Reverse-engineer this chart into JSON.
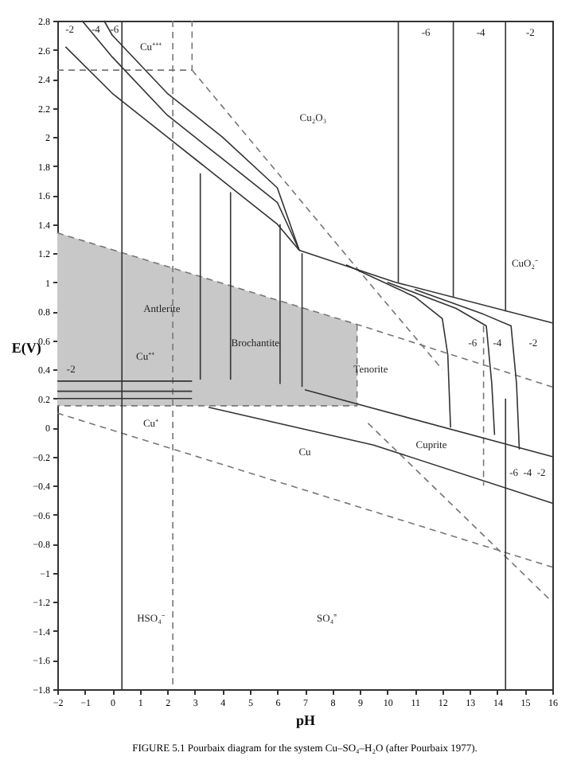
{
  "chart_data": {
    "type": "line",
    "xlabel": "pH",
    "ylabel": "E(V)",
    "xlim": [
      -2,
      16
    ],
    "ylim": [
      -1.8,
      2.8
    ],
    "xticks": [
      -2,
      -1,
      0,
      1,
      2,
      3,
      4,
      5,
      6,
      7,
      8,
      9,
      10,
      11,
      12,
      13,
      14,
      15,
      16
    ],
    "yticks": [
      -1.8,
      -1.6,
      -1.4,
      -1.2,
      -1,
      -0.8,
      -0.6,
      -0.4,
      -0.2,
      0,
      0.2,
      0.4,
      0.6,
      0.8,
      1,
      1.2,
      1.4,
      1.6,
      1.8,
      2,
      2.2,
      2.4,
      2.6,
      2.8
    ],
    "grid": false,
    "marker": "none",
    "series": [
      {
        "line_style": "dashed",
        "color": "#777777",
        "x": [
          -2,
          8.9,
          16
        ],
        "values": [
          1.34,
          0.71,
          0.28
        ],
        "lower": [
          0.15,
          0.15,
          null
        ],
        "upper": [
          1.34,
          0.71,
          null
        ]
      },
      {
        "line_style": "dashed",
        "color": "#777777",
        "x": [
          -2,
          16
        ],
        "values": [
          0.1,
          -0.96
        ]
      },
      {
        "line_style": "dashed",
        "color": "#777777",
        "x": [
          -2,
          2.9,
          2.9
        ],
        "values": [
          2.46,
          2.46,
          2.8
        ]
      },
      {
        "line_style": "dashed",
        "color": "#777777",
        "x": [
          2.2,
          2.2
        ],
        "values": [
          2.8,
          -1.8
        ]
      },
      {
        "line_style": "dashed",
        "color": "#777777",
        "x": [
          2.9,
          9.5,
          12
        ],
        "values": [
          2.46,
          0.96,
          0.4
        ]
      },
      {
        "line_style": "dashed",
        "color": "#777777",
        "x": [
          8.9,
          8.9,
          -2
        ],
        "values": [
          0.71,
          0.15,
          0.15
        ]
      },
      {
        "line_style": "dashed",
        "color": "#777777",
        "x": [
          9.3,
          16
        ],
        "values": [
          0.03,
          -1.2
        ]
      },
      {
        "line_style": "dashed",
        "color": "#777777",
        "x": [
          13.5,
          13.5
        ],
        "values": [
          0.7,
          -0.4
        ]
      },
      {
        "line_style": "solid",
        "color": "#333333",
        "x": [
          0.35,
          0.35
        ],
        "values": [
          2.8,
          -1.8
        ]
      },
      {
        "line_style": "solid",
        "color": "#333333",
        "x": [
          14.3,
          14.3
        ],
        "values": [
          0.2,
          -1.8
        ]
      },
      {
        "line_style": "solid",
        "color": "#333333",
        "x": [
          -1.7,
          0,
          2,
          4,
          6,
          6.8,
          10.3,
          16
        ],
        "values": [
          2.62,
          2.3,
          2.0,
          1.7,
          1.4,
          1.22,
          1.0,
          0.72
        ]
      },
      {
        "line_style": "solid",
        "color": "#333333",
        "x": [
          -1.1,
          0,
          2,
          4,
          6,
          6.8
        ],
        "values": [
          2.8,
          2.55,
          2.15,
          1.85,
          1.55,
          1.22
        ]
      },
      {
        "line_style": "solid",
        "color": "#333333",
        "x": [
          -0.3,
          0,
          2,
          4,
          6,
          6.8
        ],
        "values": [
          2.8,
          2.7,
          2.3,
          2.0,
          1.65,
          1.22
        ]
      },
      {
        "line_style": "solid",
        "color": "#333333",
        "x": [
          10.4,
          10.4
        ],
        "values": [
          2.8,
          1.0
        ]
      },
      {
        "line_style": "solid",
        "color": "#333333",
        "x": [
          12.4,
          12.4
        ],
        "values": [
          2.8,
          0.9
        ]
      },
      {
        "line_style": "solid",
        "color": "#333333",
        "x": [
          14.3,
          14.3
        ],
        "values": [
          2.8,
          0.8
        ]
      },
      {
        "line_style": "solid",
        "color": "#333333",
        "x": [
          8.5,
          11,
          12,
          12.2,
          12.3
        ],
        "values": [
          1.12,
          0.9,
          0.75,
          0.5,
          0.0
        ]
      },
      {
        "line_style": "solid",
        "color": "#333333",
        "x": [
          10,
          12.5,
          13.6,
          13.8,
          13.9
        ],
        "values": [
          1.0,
          0.82,
          0.7,
          0.3,
          -0.05
        ]
      },
      {
        "line_style": "solid",
        "color": "#333333",
        "x": [
          11,
          13.5,
          14.5,
          14.7,
          14.8
        ],
        "values": [
          0.95,
          0.78,
          0.7,
          0.3,
          -0.15
        ]
      },
      {
        "line_style": "solid",
        "color": "#333333",
        "x": [
          3.5,
          9.5,
          16
        ],
        "values": [
          0.14,
          -0.12,
          -0.52
        ]
      },
      {
        "line_style": "solid",
        "color": "#333333",
        "x": [
          7,
          16
        ],
        "values": [
          0.26,
          -0.2
        ]
      },
      {
        "line_style": "solid",
        "color": "#333333",
        "x": [
          -2,
          2.9
        ],
        "values": [
          0.32,
          0.32
        ]
      },
      {
        "line_style": "solid",
        "color": "#333333",
        "x": [
          -2,
          2.9
        ],
        "values": [
          0.25,
          0.25
        ]
      },
      {
        "line_style": "solid",
        "color": "#333333",
        "x": [
          -2,
          2.9
        ],
        "values": [
          0.2,
          0.2
        ]
      },
      {
        "line_style": "solid",
        "color": "#333333",
        "x": [
          3.2,
          3.2
        ],
        "values": [
          1.75,
          0.33
        ]
      },
      {
        "line_style": "solid",
        "color": "#333333",
        "x": [
          4.3,
          4.3
        ],
        "values": [
          1.62,
          0.33
        ]
      },
      {
        "line_style": "solid",
        "color": "#333333",
        "x": [
          6.1,
          6.1
        ],
        "values": [
          1.4,
          0.3
        ]
      },
      {
        "line_style": "solid",
        "color": "#333333",
        "x": [
          6.9,
          6.9
        ],
        "values": [
          1.2,
          0.28
        ]
      }
    ],
    "annotations": [
      "Cu⁺⁺⁺",
      "Cu₂O₃",
      "CuO₂⁻",
      "Antlerite",
      "Brochantite",
      "Cu⁺⁺",
      "Tenorite",
      "Cu⁺",
      "Cu",
      "Cuprite",
      "HSO₄⁻",
      "SO₄⁼",
      "-2",
      "-4",
      "-6",
      "-6",
      "-4",
      "-2",
      "-6",
      "-4",
      "-2",
      "-6",
      "-4",
      "-2",
      "-2",
      "FIGURE 5.1  Pourbaix diagram for the system Cu–SO₄–H₂O (after Pourbaix 1977)."
    ]
  }
}
